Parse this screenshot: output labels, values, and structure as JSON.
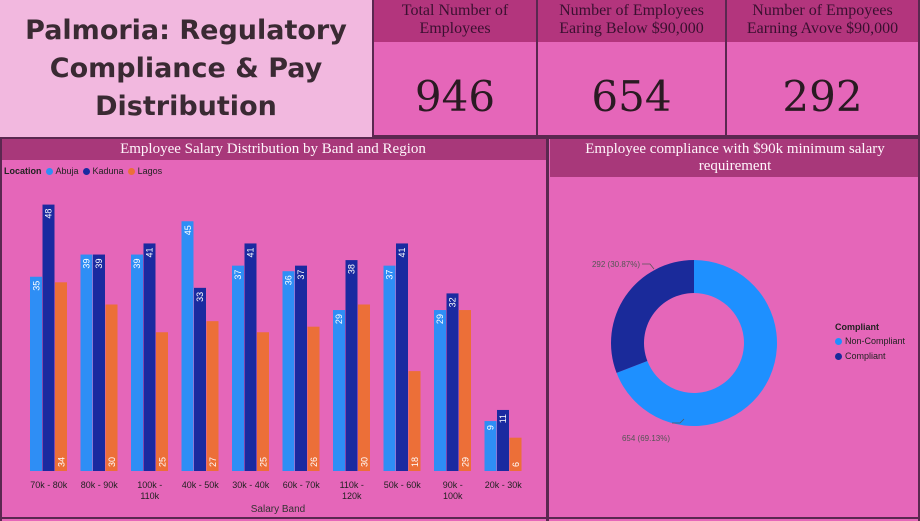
{
  "header": {
    "title": "Palmoria: Regulatory\nCompliance & Pay\nDistribution"
  },
  "kpis": [
    {
      "label": "Total Number of\nEmployees",
      "value": "946"
    },
    {
      "label": "Number of Employees\nEaring Below $90,000",
      "value": "654"
    },
    {
      "label": "Number of Empoyees\nEarning Avove $90,000",
      "value": "292"
    }
  ],
  "bar_panel": {
    "title": "Employee Salary Distribution by Band and Region",
    "legend_title": "Location"
  },
  "donut_panel": {
    "title": "Employee compliance with $90k minimum salary\nrequirement",
    "legend_title": "Compliant"
  },
  "colors": {
    "abuja": "#2e8ef5",
    "kaduna": "#1a2aa0",
    "lagos": "#ec6f38",
    "noncompliant": "#1e90ff",
    "compliant": "#1a2a9a"
  },
  "chart_data": [
    {
      "type": "bar",
      "title": "Employee Salary Distribution by Band and Region",
      "xlabel": "Salary Band",
      "ylabel": "",
      "categories": [
        "70k - 80k",
        "80k - 90k",
        "100k - 110k",
        "40k - 50k",
        "30k - 40k",
        "60k - 70k",
        "110k - 120k",
        "50k - 60k",
        "90k - 100k",
        "20k - 30k"
      ],
      "series": [
        {
          "name": "Abuja",
          "values": [
            35,
            39,
            39,
            45,
            37,
            36,
            29,
            37,
            29,
            9
          ]
        },
        {
          "name": "Kaduna",
          "values": [
            48,
            39,
            41,
            33,
            41,
            37,
            38,
            41,
            32,
            11
          ]
        },
        {
          "name": "Lagos",
          "values": [
            34,
            30,
            25,
            27,
            25,
            26,
            30,
            18,
            29,
            6
          ]
        }
      ],
      "legend": "top-left"
    },
    {
      "type": "pie",
      "title": "Employee compliance with $90k minimum salary requirement",
      "categories": [
        "Non-Compliant",
        "Compliant"
      ],
      "values": [
        654,
        292
      ],
      "data_labels": [
        "654 (69.13%)",
        "292 (30.87%)"
      ],
      "legend": "right"
    }
  ]
}
